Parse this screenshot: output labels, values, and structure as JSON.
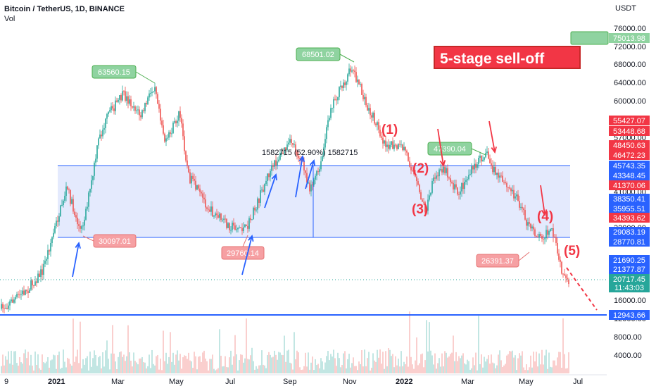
{
  "header": {
    "symbol_line": "Bitcoin / TetherUS, 1D, BINANCE",
    "volume_label": "Vol",
    "currency": "USDT"
  },
  "colors": {
    "up": "#26a69a",
    "down": "#ef5350",
    "zone_fill": "#dfe6fd",
    "zone_line": "#2962ff",
    "arrow_blue": "#2962ff",
    "arrow_red": "#f23645",
    "callout_green_bg": "#8fd3a0",
    "callout_red_bg": "#f6a0a3",
    "axis_text": "#131722"
  },
  "annotations": {
    "title_box": "5-stage sell-off",
    "stages": [
      "(1)",
      "(2)",
      "(3)",
      "(4)",
      "(5)"
    ],
    "measure_label": "1582715 (52.90%) 1582715",
    "callouts": [
      "63560.15",
      "68501.02",
      "47390.04",
      "30097.01",
      "29760.14",
      "26391.37"
    ]
  },
  "price_axis": {
    "ticks": [
      "76000.00",
      "72000.00",
      "68000.00",
      "64000.00",
      "60000.00",
      "57000.00",
      "41000.00",
      "32000.00",
      "16000.00",
      "12000.00",
      "8000.00",
      "4000.00"
    ],
    "badges": [
      {
        "value": "75013.98",
        "color": "#8fd3a0",
        "text_color": "#ffffff"
      },
      {
        "value": "55427.07",
        "color": "#f23645",
        "text_color": "#ffffff"
      },
      {
        "value": "53448.68",
        "color": "#f23645",
        "text_color": "#ffffff"
      },
      {
        "value": "48450.63",
        "color": "#f23645",
        "text_color": "#ffffff"
      },
      {
        "value": "46472.23",
        "color": "#f23645",
        "text_color": "#ffffff"
      },
      {
        "value": "45743.35",
        "color": "#2962ff",
        "text_color": "#ffffff"
      },
      {
        "value": "43348.45",
        "color": "#2962ff",
        "text_color": "#ffffff"
      },
      {
        "value": "41370.06",
        "color": "#f23645",
        "text_color": "#ffffff"
      },
      {
        "value": "38350.41",
        "color": "#2962ff",
        "text_color": "#ffffff"
      },
      {
        "value": "35955.51",
        "color": "#2962ff",
        "text_color": "#ffffff"
      },
      {
        "value": "34393.62",
        "color": "#f23645",
        "text_color": "#ffffff"
      },
      {
        "value": "29083.19",
        "color": "#2962ff",
        "text_color": "#ffffff"
      },
      {
        "value": "28770.81",
        "color": "#2962ff",
        "text_color": "#ffffff"
      },
      {
        "value": "21690.25",
        "color": "#2962ff",
        "text_color": "#ffffff"
      },
      {
        "value": "21377.87",
        "color": "#2962ff",
        "text_color": "#ffffff"
      },
      {
        "value": "20717.45",
        "color": "#26a69a",
        "text_color": "#ffffff"
      },
      {
        "value": "11:43:03",
        "color": "#26a69a",
        "text_color": "#ffffff"
      },
      {
        "value": "12943.66",
        "color": "#2962ff",
        "text_color": "#ffffff"
      }
    ]
  },
  "time_axis": {
    "ticks": [
      "9",
      "2021",
      "Mar",
      "May",
      "Jul",
      "Sep",
      "Nov",
      "2022",
      "Mar",
      "May",
      "Jul"
    ]
  }
}
